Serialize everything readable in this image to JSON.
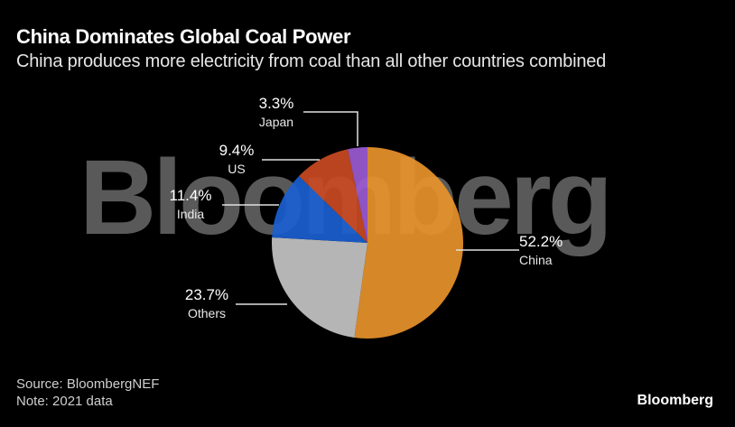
{
  "header": {
    "title": "China Dominates Global Coal Power",
    "subtitle": "China produces more electricity from coal than all other countries combined"
  },
  "watermark": "Bloomberg",
  "footer": {
    "source": "Source: BloombergNEF",
    "note": "Note: 2021 data",
    "brand": "Bloomberg"
  },
  "chart_data": {
    "type": "pie",
    "title": "China Dominates Global Coal Power",
    "subtitle": "China produces more electricity from coal than all other countries combined",
    "categories": [
      "China",
      "Others",
      "India",
      "US",
      "Japan"
    ],
    "values": [
      52.2,
      23.7,
      11.4,
      9.4,
      3.3
    ],
    "labels": [
      "52.2%",
      "23.7%",
      "11.4%",
      "9.4%",
      "3.3%"
    ],
    "colors": [
      "#e8932a",
      "#c4c4c4",
      "#1a5fd0",
      "#c94a22",
      "#9c5ad3"
    ],
    "start_angle_deg": 0,
    "direction": "clockwise",
    "legend": "none (direct labels with leader lines)",
    "source": "BloombergNEF",
    "note": "2021 data"
  }
}
